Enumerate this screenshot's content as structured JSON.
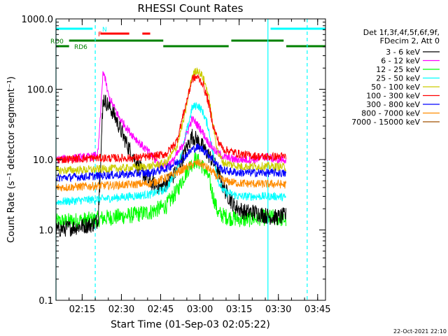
{
  "chart_data": {
    "type": "line",
    "title": "RHESSI Count Rates",
    "xlabel": "Start Time (01-Sep-03 02:05:22)",
    "ylabel": "Count Rate (s⁻¹ detector segment⁻¹)",
    "yscale": "log",
    "ylim": [
      0.1,
      1000
    ],
    "xlim_minutes": [
      0,
      103
    ],
    "x_ticks": [
      {
        "t": 10,
        "label": "02:15"
      },
      {
        "t": 25,
        "label": "02:30"
      },
      {
        "t": 40,
        "label": "02:45"
      },
      {
        "t": 55,
        "label": "03:00"
      },
      {
        "t": 70,
        "label": "03:15"
      },
      {
        "t": 85,
        "label": "03:30"
      },
      {
        "t": 100,
        "label": "03:45"
      }
    ],
    "y_ticks": [
      {
        "v": 0.1,
        "label": "0.1"
      },
      {
        "v": 1,
        "label": "1.0"
      },
      {
        "v": 10,
        "label": "10.0"
      },
      {
        "v": 100,
        "label": "100.0"
      },
      {
        "v": 1000,
        "label": "1000.0"
      }
    ],
    "legend_header": [
      "Det 1f,3f,4f,5f,6f,9f,",
      "FDecim 2, Att 0"
    ],
    "legend_position": "right",
    "series": [
      {
        "name": "3 - 6 keV",
        "color": "#000000",
        "points": [
          [
            0,
            1.0
          ],
          [
            14,
            1.2
          ],
          [
            16,
            1.4
          ],
          [
            18,
            75
          ],
          [
            22,
            45
          ],
          [
            26,
            20
          ],
          [
            30,
            10
          ],
          [
            35,
            5
          ],
          [
            40,
            4
          ],
          [
            45,
            6
          ],
          [
            48,
            10
          ],
          [
            52,
            22
          ],
          [
            55,
            17
          ],
          [
            58,
            12
          ],
          [
            61,
            8
          ],
          [
            64,
            4
          ],
          [
            68,
            2.2
          ],
          [
            72,
            1.8
          ],
          [
            76,
            1.8
          ],
          [
            80,
            1.6
          ],
          [
            84,
            1.5
          ],
          [
            88,
            1.6
          ]
        ]
      },
      {
        "name": "6 - 12 keV",
        "color": "#ff00ff",
        "points": [
          [
            0,
            10
          ],
          [
            14,
            11
          ],
          [
            16,
            12
          ],
          [
            18,
            190
          ],
          [
            20,
            80
          ],
          [
            24,
            40
          ],
          [
            28,
            25
          ],
          [
            32,
            17
          ],
          [
            36,
            12
          ],
          [
            40,
            8
          ],
          [
            44,
            9
          ],
          [
            48,
            15
          ],
          [
            52,
            38
          ],
          [
            55,
            28
          ],
          [
            58,
            18
          ],
          [
            61,
            13
          ],
          [
            64,
            11
          ],
          [
            68,
            10
          ],
          [
            72,
            10
          ],
          [
            76,
            10
          ],
          [
            80,
            11
          ],
          [
            84,
            10
          ],
          [
            88,
            10
          ]
        ]
      },
      {
        "name": "12 - 25 keV",
        "color": "#00ff00",
        "points": [
          [
            0,
            1.3
          ],
          [
            14,
            1.4
          ],
          [
            20,
            1.5
          ],
          [
            28,
            1.6
          ],
          [
            36,
            1.8
          ],
          [
            42,
            2.2
          ],
          [
            46,
            3.5
          ],
          [
            50,
            7
          ],
          [
            53,
            10
          ],
          [
            55,
            9
          ],
          [
            58,
            6
          ],
          [
            60,
            3
          ],
          [
            62,
            1.7
          ],
          [
            66,
            1.5
          ],
          [
            72,
            1.4
          ],
          [
            78,
            1.5
          ],
          [
            84,
            1.5
          ],
          [
            88,
            1.4
          ]
        ]
      },
      {
        "name": "25 - 50 keV",
        "color": "#00ffff",
        "points": [
          [
            0,
            2.5
          ],
          [
            14,
            2.7
          ],
          [
            20,
            2.8
          ],
          [
            28,
            3.0
          ],
          [
            36,
            3.2
          ],
          [
            42,
            3.8
          ],
          [
            46,
            7
          ],
          [
            49,
            18
          ],
          [
            52,
            55
          ],
          [
            54,
            60
          ],
          [
            56,
            48
          ],
          [
            58,
            30
          ],
          [
            60,
            12
          ],
          [
            62,
            5
          ],
          [
            64,
            3.5
          ],
          [
            70,
            3.0
          ],
          [
            78,
            3.0
          ],
          [
            84,
            3.0
          ],
          [
            88,
            2.9
          ]
        ]
      },
      {
        "name": "50 - 100 keV",
        "color": "#cccc00",
        "points": [
          [
            0,
            7
          ],
          [
            14,
            7.2
          ],
          [
            20,
            7.4
          ],
          [
            28,
            7.6
          ],
          [
            36,
            8
          ],
          [
            42,
            9
          ],
          [
            46,
            15
          ],
          [
            49,
            40
          ],
          [
            52,
            160
          ],
          [
            54,
            190
          ],
          [
            56,
            150
          ],
          [
            58,
            90
          ],
          [
            60,
            30
          ],
          [
            62,
            12
          ],
          [
            64,
            9
          ],
          [
            70,
            8
          ],
          [
            78,
            8
          ],
          [
            84,
            8
          ],
          [
            88,
            7.8
          ]
        ]
      },
      {
        "name": "100 - 300 keV",
        "color": "#ff0000",
        "points": [
          [
            0,
            10
          ],
          [
            14,
            10.5
          ],
          [
            20,
            10.5
          ],
          [
            28,
            10.5
          ],
          [
            36,
            11
          ],
          [
            42,
            12
          ],
          [
            46,
            18
          ],
          [
            49,
            50
          ],
          [
            52,
            140
          ],
          [
            54,
            150
          ],
          [
            56,
            120
          ],
          [
            58,
            70
          ],
          [
            60,
            30
          ],
          [
            62,
            18
          ],
          [
            64,
            14
          ],
          [
            70,
            12
          ],
          [
            78,
            11
          ],
          [
            84,
            11
          ],
          [
            88,
            11
          ]
        ]
      },
      {
        "name": "300 - 800 keV",
        "color": "#0000ff",
        "points": [
          [
            0,
            5.5
          ],
          [
            14,
            5.8
          ],
          [
            20,
            6
          ],
          [
            28,
            6.2
          ],
          [
            36,
            6.5
          ],
          [
            42,
            7.5
          ],
          [
            46,
            9
          ],
          [
            49,
            11
          ],
          [
            52,
            14
          ],
          [
            54,
            15
          ],
          [
            56,
            14
          ],
          [
            58,
            12
          ],
          [
            60,
            10
          ],
          [
            62,
            8
          ],
          [
            64,
            7
          ],
          [
            70,
            6.5
          ],
          [
            78,
            6.5
          ],
          [
            84,
            6.5
          ],
          [
            88,
            6.3
          ]
        ]
      },
      {
        "name": "800 - 7000 keV",
        "color": "#ff8c00",
        "points": [
          [
            0,
            4
          ],
          [
            14,
            4.2
          ],
          [
            20,
            4.3
          ],
          [
            28,
            4.4
          ],
          [
            36,
            4.6
          ],
          [
            42,
            5.5
          ],
          [
            46,
            6.5
          ],
          [
            49,
            7.5
          ],
          [
            52,
            8.5
          ],
          [
            54,
            9
          ],
          [
            56,
            8.5
          ],
          [
            58,
            7.5
          ],
          [
            60,
            6.5
          ],
          [
            62,
            5.5
          ],
          [
            64,
            5
          ],
          [
            70,
            4.6
          ],
          [
            78,
            4.5
          ],
          [
            84,
            4.5
          ],
          [
            88,
            4.4
          ]
        ]
      },
      {
        "name": "7000 - 15000 keV",
        "color": "#a05000",
        "points": []
      }
    ],
    "flags": [
      {
        "label": "N",
        "color": "#00ffff",
        "segments": [
          [
            0,
            14
          ],
          [
            82,
            103
          ]
        ]
      },
      {
        "label": "F",
        "color": "#ff0000",
        "segments": [
          [
            17,
            28
          ],
          [
            33,
            36
          ]
        ]
      },
      {
        "label": "RD0",
        "color": "#008000",
        "segments": [
          [
            5,
            41
          ],
          [
            67,
            87
          ]
        ]
      },
      {
        "label": "RD6",
        "color": "#008000",
        "segments": [
          [
            0,
            5
          ],
          [
            41,
            66
          ],
          [
            88,
            103
          ]
        ]
      }
    ],
    "vlines_solid": [
      0,
      81
    ],
    "vlines_dashed": [
      15,
      96
    ],
    "vline_color": "#00ffff"
  },
  "footer": {
    "timestamp": "22-Oct-2021 22:10"
  }
}
